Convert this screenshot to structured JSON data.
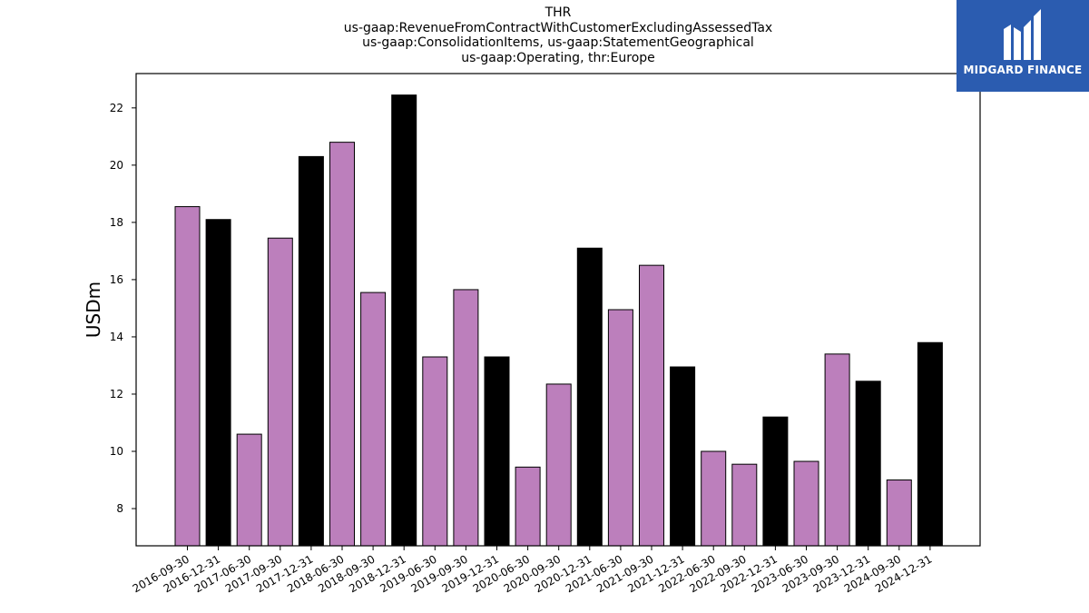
{
  "chart_data": {
    "type": "bar",
    "title_lines": [
      "THR",
      "us-gaap:RevenueFromContractWithCustomerExcludingAssessedTax",
      "us-gaap:ConsolidationItems, us-gaap:StatementGeographical",
      "us-gaap:Operating, thr:Europe"
    ],
    "xlabel": "",
    "ylabel": "USDm",
    "ylim": [
      6.7,
      23.2
    ],
    "yticks": [
      8,
      10,
      12,
      14,
      16,
      18,
      20,
      22
    ],
    "grid": false,
    "categories": [
      "2016-09-30",
      "2016-12-31",
      "2017-06-30",
      "2017-09-30",
      "2017-12-31",
      "2018-06-30",
      "2018-09-30",
      "2018-12-31",
      "2019-06-30",
      "2019-09-30",
      "2019-12-31",
      "2020-06-30",
      "2020-09-30",
      "2020-12-31",
      "2021-06-30",
      "2021-09-30",
      "2021-12-31",
      "2022-06-30",
      "2022-09-30",
      "2022-12-31",
      "2023-06-30",
      "2023-09-30",
      "2023-12-31",
      "2024-09-30",
      "2024-12-31"
    ],
    "values": [
      18.55,
      18.1,
      10.6,
      17.45,
      20.3,
      20.8,
      15.55,
      22.45,
      13.3,
      15.65,
      13.3,
      9.45,
      12.35,
      17.1,
      14.95,
      16.5,
      12.95,
      10.0,
      9.55,
      11.2,
      9.65,
      13.4,
      12.45,
      9.0,
      13.8
    ],
    "colors": {
      "quarter": "#bc7fbc",
      "year_end": "#000000",
      "edge": "#000000"
    },
    "bar_color_keys": [
      "quarter",
      "year_end",
      "quarter",
      "quarter",
      "year_end",
      "quarter",
      "quarter",
      "year_end",
      "quarter",
      "quarter",
      "year_end",
      "quarter",
      "quarter",
      "year_end",
      "quarter",
      "quarter",
      "year_end",
      "quarter",
      "quarter",
      "year_end",
      "quarter",
      "quarter",
      "year_end",
      "quarter",
      "year_end"
    ]
  },
  "logo": {
    "text": "MIDGARD FINANCE",
    "background": "#2b5cb0",
    "foreground": "#ffffff"
  }
}
